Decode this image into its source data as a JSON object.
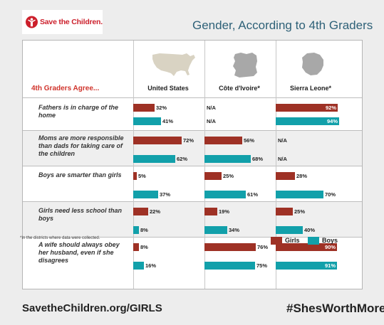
{
  "brand": {
    "logo_text": "Save the Children."
  },
  "footer": {
    "url": "SavetheChildren.org/GIRLS",
    "hashtag": "#ShesWorthMore"
  },
  "note": "*In the districts where data were collected.",
  "colors": {
    "girls": "#9e3125",
    "boys": "#12a0aa",
    "title": "#2e6178",
    "accent_red": "#d0342c",
    "map": "#d9d3c3",
    "map_gray": "#a8a8a8"
  },
  "icons": [
    "save-the-children-logo-icon",
    "united-states-map-icon",
    "cote-divoire-map-icon",
    "sierra-leone-map-icon"
  ],
  "chart_data": {
    "type": "bar",
    "orientation": "horizontal",
    "title": "Gender, According to 4th Graders",
    "row_header": "4th Graders Agree...",
    "columns": [
      "United States",
      "Côte d'Ivoire*",
      "Sierra Leone*"
    ],
    "legend": [
      "Girls",
      "Boys"
    ],
    "legend_position": "bottom-right",
    "xlim": [
      0,
      100
    ],
    "unit": "%",
    "rows": [
      {
        "statement": "Fathers is in charge of the home",
        "girls": [
          32,
          null,
          92
        ],
        "boys": [
          41,
          null,
          94
        ],
        "girls_labels": [
          "32%",
          "N/A",
          "92%"
        ],
        "boys_labels": [
          "41%",
          "N/A",
          "94%"
        ]
      },
      {
        "statement": "Moms are more responsible than dads for taking care of the children",
        "girls": [
          72,
          56,
          null
        ],
        "boys": [
          62,
          68,
          null
        ],
        "girls_labels": [
          "72%",
          "56%",
          "N/A"
        ],
        "boys_labels": [
          "62%",
          "68%",
          "N/A"
        ]
      },
      {
        "statement": "Boys are smarter than girls",
        "girls": [
          5,
          25,
          28
        ],
        "boys": [
          37,
          61,
          70
        ],
        "girls_labels": [
          "5%",
          "25%",
          "28%"
        ],
        "boys_labels": [
          "37%",
          "61%",
          "70%"
        ]
      },
      {
        "statement": "Girls need less school than boys",
        "girls": [
          22,
          19,
          25
        ],
        "boys": [
          8,
          34,
          40
        ],
        "girls_labels": [
          "22%",
          "19%",
          "25%"
        ],
        "boys_labels": [
          "8%",
          "34%",
          "40%"
        ]
      },
      {
        "statement": "A wife should always obey her husband, even if she disagrees",
        "girls": [
          8,
          76,
          90
        ],
        "boys": [
          16,
          75,
          91
        ],
        "girls_labels": [
          "8%",
          "76%",
          "90%"
        ],
        "boys_labels": [
          "16%",
          "75%",
          "91%"
        ]
      }
    ]
  }
}
